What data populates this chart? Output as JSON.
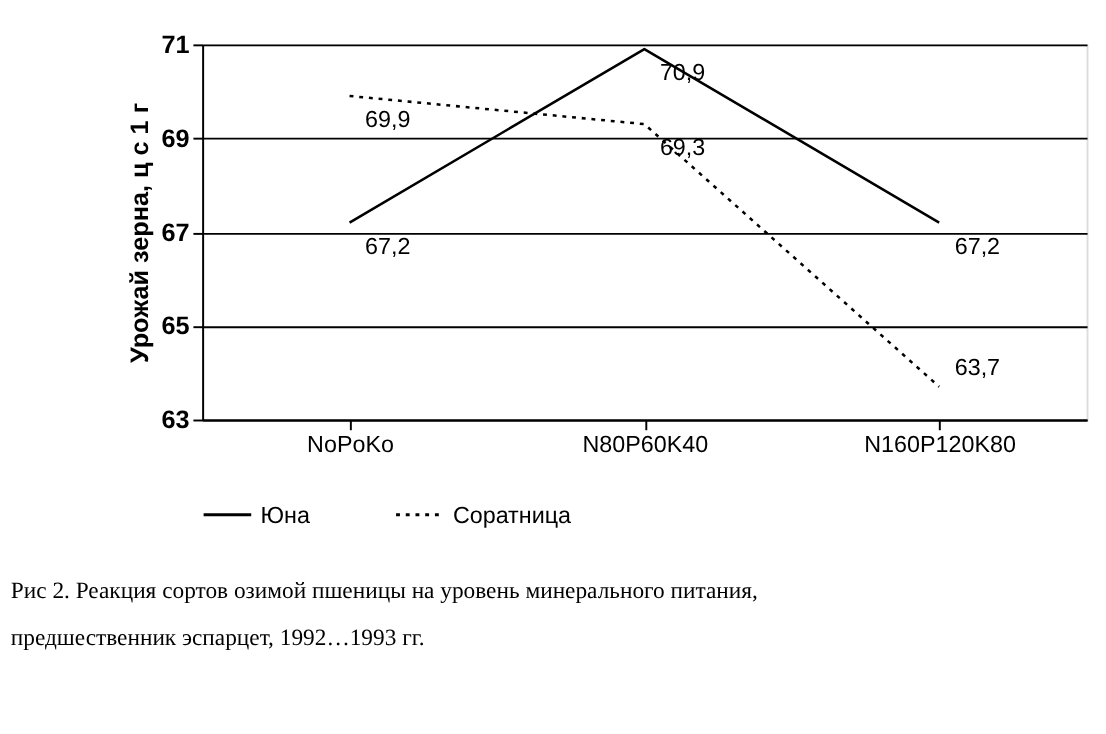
{
  "chart_data": {
    "type": "line",
    "ylabel": "Урожай зерна, ц с 1 г",
    "categories": [
      "NoPoKo",
      "N80P60K40",
      "N160P120K80"
    ],
    "series": [
      {
        "name": "Юна",
        "color": "#000000",
        "values": [
          67.2,
          70.9,
          67.2
        ],
        "value_labels": [
          "67,2",
          "70,9",
          "67,2"
        ],
        "line_style": "solid"
      },
      {
        "name": "Соратница",
        "color": "#000000",
        "values": [
          69.9,
          69.3,
          63.7
        ],
        "value_labels": [
          "69,9",
          "69,3",
          "63,7"
        ],
        "line_style": "dotted"
      }
    ],
    "ylim": [
      63,
      71
    ],
    "yticks": [
      63,
      65,
      67,
      69,
      71
    ],
    "grid": "y",
    "legend": "bottom",
    "marker": "none",
    "annotations": [
      "Рис 2. Реакция сортов озимой пшеницы на уровень минерального питания, предшественник эспарцет, 1992…1993 гг."
    ]
  }
}
